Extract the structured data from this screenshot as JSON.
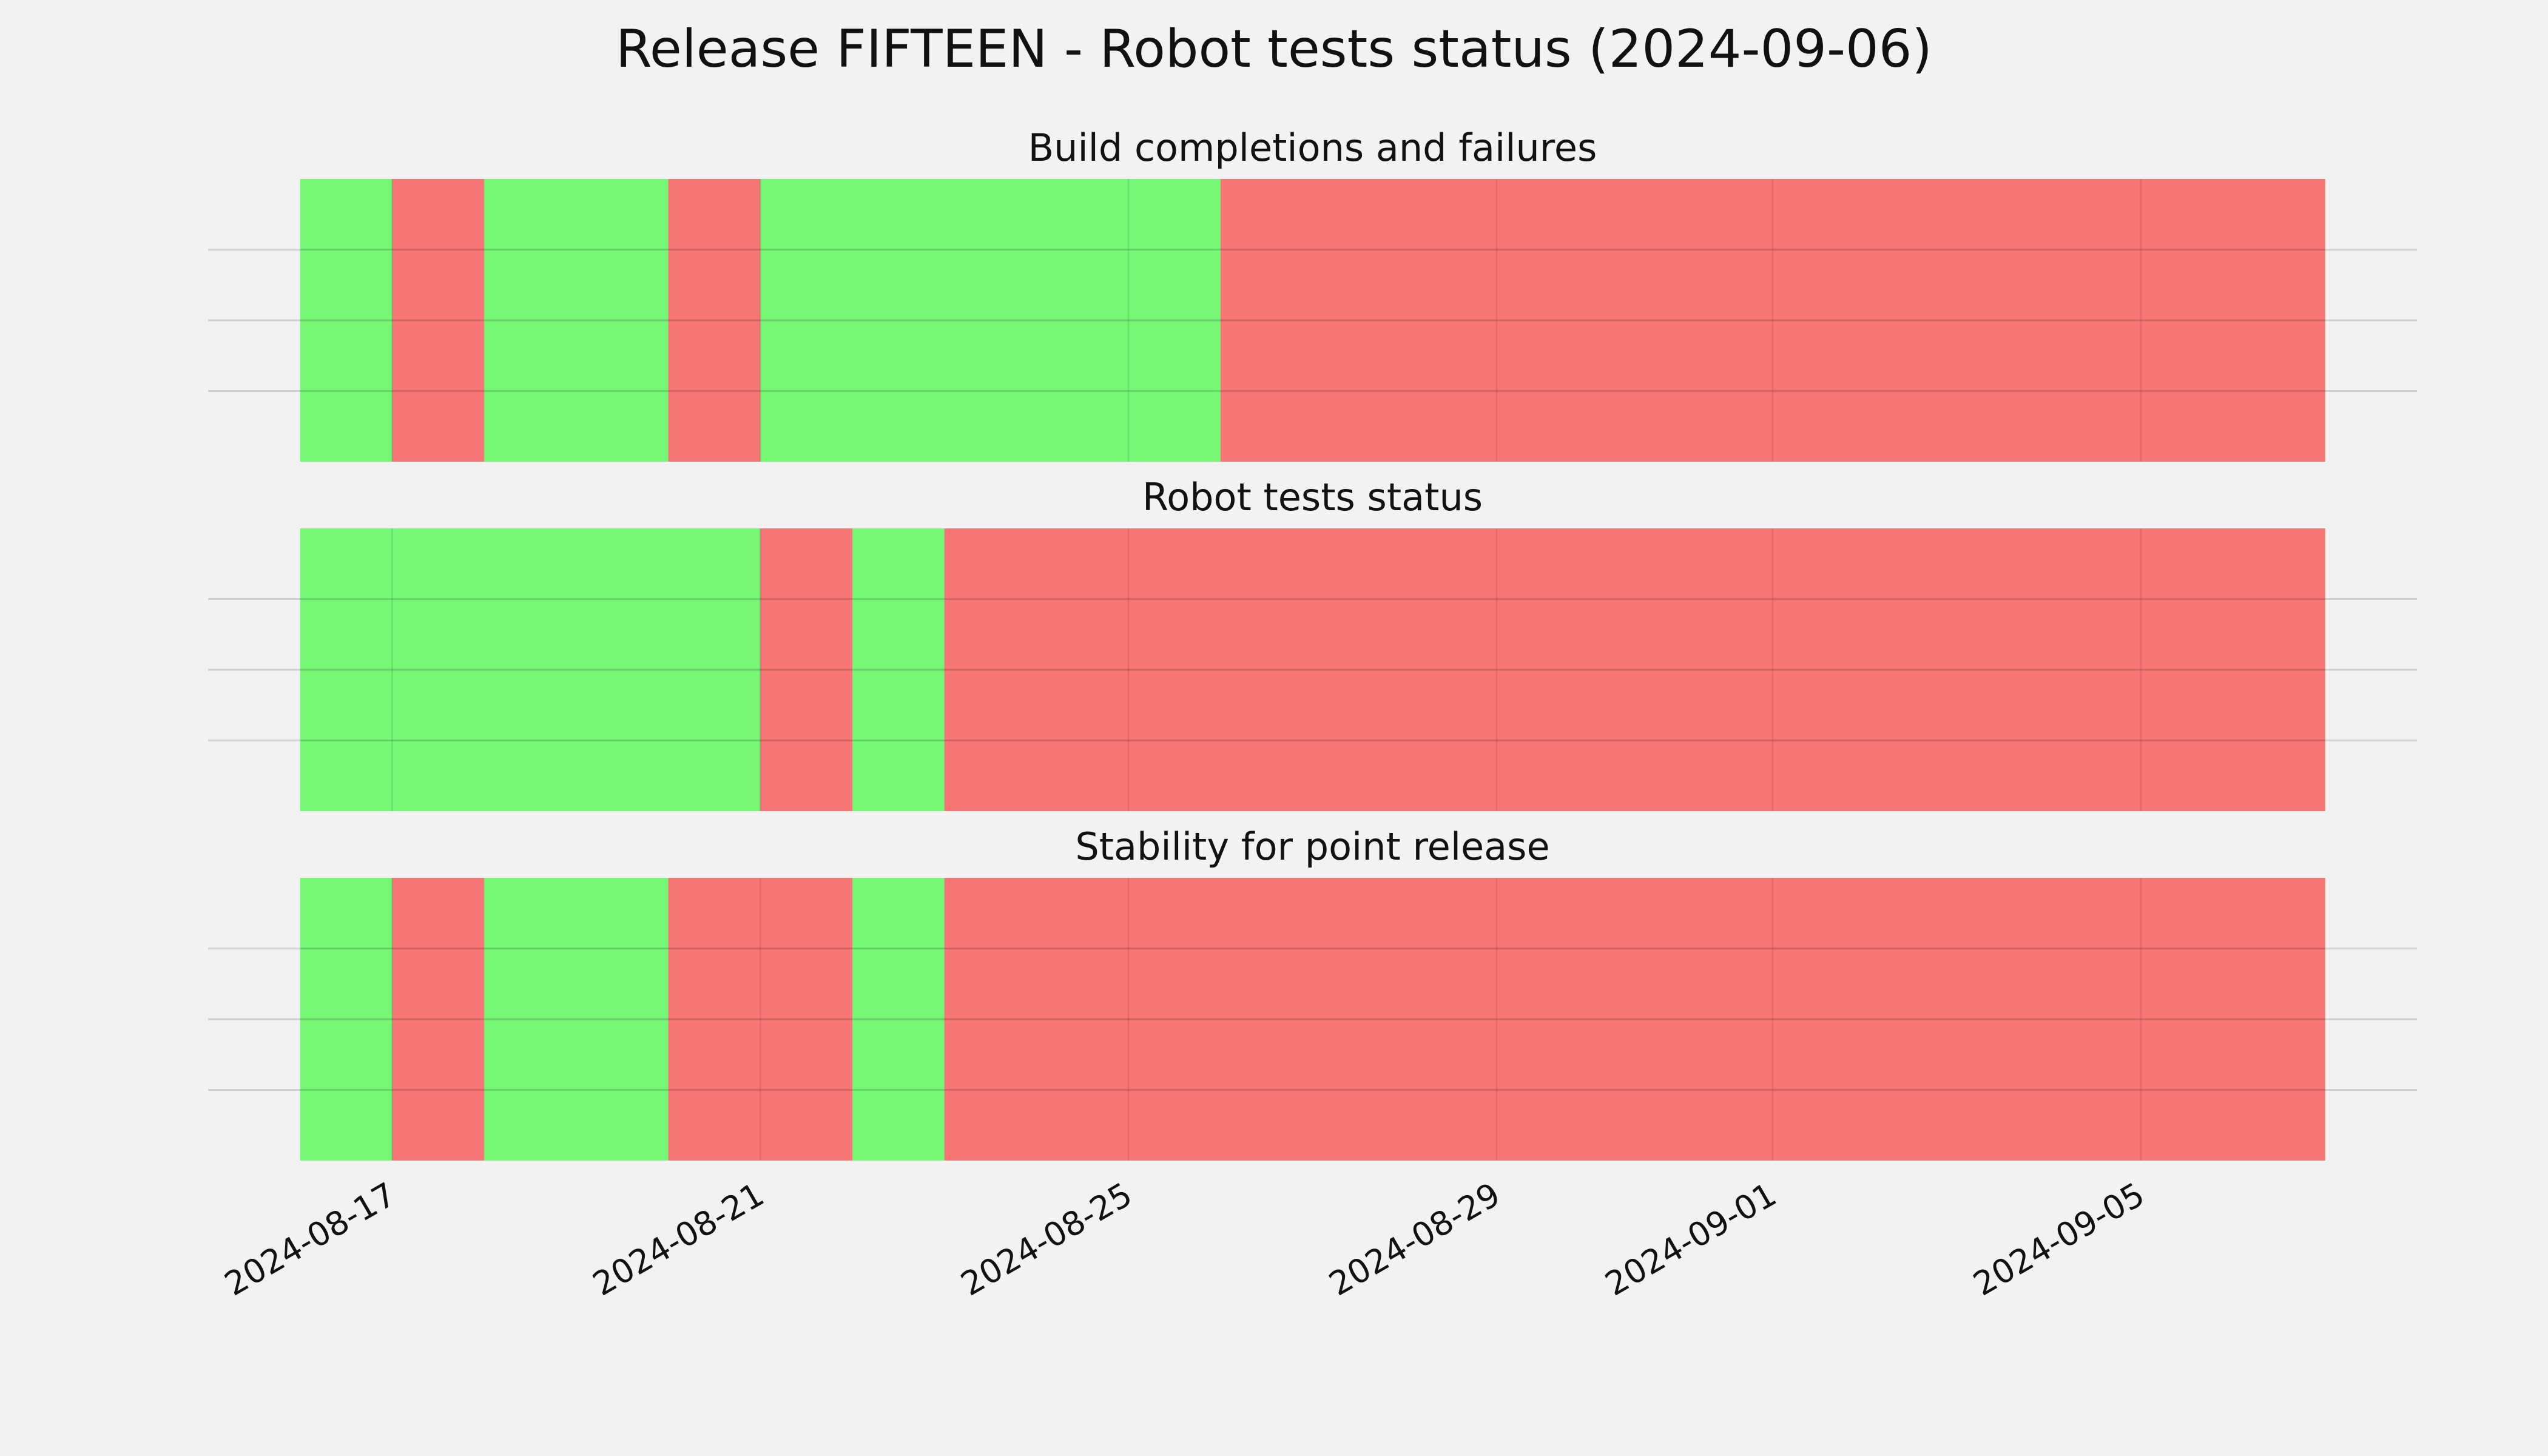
{
  "title": "Release FIFTEEN - Robot tests status (2024-09-06)",
  "chart_data": [
    {
      "type": "timeline",
      "title": "Build completions and failures",
      "x": [
        "2024-08-16",
        "2024-08-17",
        "2024-08-18",
        "2024-08-19",
        "2024-08-20",
        "2024-08-21",
        "2024-08-22",
        "2024-08-23",
        "2024-08-24",
        "2024-08-25",
        "2024-08-26",
        "2024-08-27",
        "2024-08-28",
        "2024-08-29",
        "2024-08-30",
        "2024-08-31",
        "2024-09-01",
        "2024-09-02",
        "2024-09-03",
        "2024-09-04",
        "2024-09-05",
        "2024-09-06"
      ],
      "values": [
        1,
        0,
        1,
        1,
        0,
        1,
        1,
        1,
        1,
        1,
        0,
        0,
        0,
        0,
        0,
        0,
        0,
        0,
        0,
        0,
        0,
        0
      ],
      "colors": [
        "#f77676",
        "#76f776"
      ],
      "xlim": [
        "2024-08-15",
        "2024-09-08"
      ],
      "xticks": [
        "2024-08-17",
        "2024-08-21",
        "2024-08-25",
        "2024-08-29",
        "2024-09-01",
        "2024-09-05"
      ],
      "ylim": [
        0,
        1
      ],
      "yticks": [
        0.25,
        0.5,
        0.75
      ],
      "grid": true
    },
    {
      "type": "timeline",
      "title": "Robot tests status",
      "x": [
        "2024-08-16",
        "2024-08-17",
        "2024-08-18",
        "2024-08-19",
        "2024-08-20",
        "2024-08-21",
        "2024-08-22",
        "2024-08-23",
        "2024-08-24",
        "2024-08-25",
        "2024-08-26",
        "2024-08-27",
        "2024-08-28",
        "2024-08-29",
        "2024-08-30",
        "2024-08-31",
        "2024-09-01",
        "2024-09-02",
        "2024-09-03",
        "2024-09-04",
        "2024-09-05",
        "2024-09-06"
      ],
      "values": [
        1,
        1,
        1,
        1,
        1,
        0,
        1,
        0,
        0,
        0,
        0,
        0,
        0,
        0,
        0,
        0,
        0,
        0,
        0,
        0,
        0,
        0
      ],
      "colors": [
        "#f77676",
        "#76f776"
      ],
      "xlim": [
        "2024-08-15",
        "2024-09-08"
      ],
      "xticks": [
        "2024-08-17",
        "2024-08-21",
        "2024-08-25",
        "2024-08-29",
        "2024-09-01",
        "2024-09-05"
      ],
      "ylim": [
        0,
        1
      ],
      "yticks": [
        0.25,
        0.5,
        0.75
      ],
      "grid": true
    },
    {
      "type": "timeline",
      "title": "Stability for point release",
      "x": [
        "2024-08-16",
        "2024-08-17",
        "2024-08-18",
        "2024-08-19",
        "2024-08-20",
        "2024-08-21",
        "2024-08-22",
        "2024-08-23",
        "2024-08-24",
        "2024-08-25",
        "2024-08-26",
        "2024-08-27",
        "2024-08-28",
        "2024-08-29",
        "2024-08-30",
        "2024-08-31",
        "2024-09-01",
        "2024-09-02",
        "2024-09-03",
        "2024-09-04",
        "2024-09-05",
        "2024-09-06"
      ],
      "values": [
        1,
        0,
        1,
        1,
        0,
        0,
        1,
        0,
        0,
        0,
        0,
        0,
        0,
        0,
        0,
        0,
        0,
        0,
        0,
        0,
        0,
        0
      ],
      "colors": [
        "#f77676",
        "#76f776"
      ],
      "xlim": [
        "2024-08-15",
        "2024-09-08"
      ],
      "xticks": [
        "2024-08-17",
        "2024-08-21",
        "2024-08-25",
        "2024-08-29",
        "2024-09-01",
        "2024-09-05"
      ],
      "ylim": [
        0,
        1
      ],
      "yticks": [
        0.25,
        0.5,
        0.75
      ],
      "grid": true
    }
  ]
}
